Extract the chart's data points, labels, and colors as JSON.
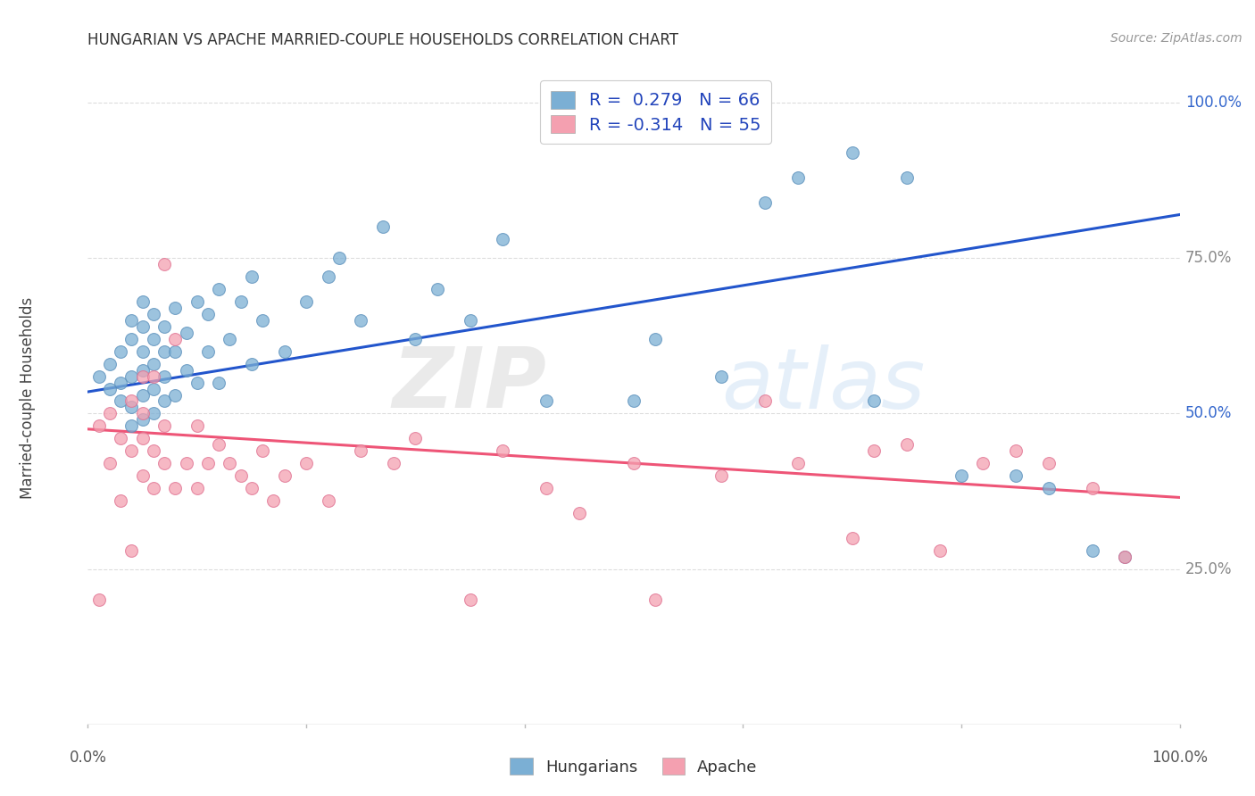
{
  "title": "HUNGARIAN VS APACHE MARRIED-COUPLE HOUSEHOLDS CORRELATION CHART",
  "source": "Source: ZipAtlas.com",
  "ylabel": "Married-couple Households",
  "ytick_vals": [
    0.25,
    0.5,
    0.75,
    1.0
  ],
  "ytick_labels": [
    "25.0%",
    "50.0%",
    "75.0%",
    "100.0%"
  ],
  "xtick_vals": [
    0.0,
    1.0
  ],
  "xtick_labels": [
    "0.0%",
    "100.0%"
  ],
  "blue_color": "#7BAFD4",
  "blue_edge": "#5A8FBB",
  "pink_color": "#F4A0B0",
  "pink_edge": "#E07090",
  "line_blue": "#2255CC",
  "line_pink": "#EE5577",
  "blue_line_x0": 0.0,
  "blue_line_y0": 0.535,
  "blue_line_x1": 1.0,
  "blue_line_y1": 0.82,
  "pink_line_x0": 0.0,
  "pink_line_y0": 0.475,
  "pink_line_x1": 1.0,
  "pink_line_y1": 0.365,
  "hungarian_x": [
    0.01,
    0.02,
    0.02,
    0.03,
    0.03,
    0.03,
    0.04,
    0.04,
    0.04,
    0.04,
    0.04,
    0.05,
    0.05,
    0.05,
    0.05,
    0.05,
    0.05,
    0.06,
    0.06,
    0.06,
    0.06,
    0.06,
    0.07,
    0.07,
    0.07,
    0.07,
    0.08,
    0.08,
    0.08,
    0.09,
    0.09,
    0.1,
    0.1,
    0.11,
    0.11,
    0.12,
    0.12,
    0.13,
    0.14,
    0.15,
    0.15,
    0.16,
    0.18,
    0.2,
    0.22,
    0.23,
    0.25,
    0.27,
    0.3,
    0.32,
    0.35,
    0.38,
    0.42,
    0.5,
    0.52,
    0.58,
    0.62,
    0.65,
    0.7,
    0.72,
    0.75,
    0.8,
    0.85,
    0.88,
    0.92,
    0.95
  ],
  "hungarian_y": [
    0.56,
    0.54,
    0.58,
    0.52,
    0.55,
    0.6,
    0.48,
    0.51,
    0.56,
    0.62,
    0.65,
    0.49,
    0.53,
    0.57,
    0.6,
    0.64,
    0.68,
    0.5,
    0.54,
    0.58,
    0.62,
    0.66,
    0.52,
    0.56,
    0.6,
    0.64,
    0.53,
    0.6,
    0.67,
    0.57,
    0.63,
    0.55,
    0.68,
    0.6,
    0.66,
    0.55,
    0.7,
    0.62,
    0.68,
    0.58,
    0.72,
    0.65,
    0.6,
    0.68,
    0.72,
    0.75,
    0.65,
    0.8,
    0.62,
    0.7,
    0.65,
    0.78,
    0.52,
    0.52,
    0.62,
    0.56,
    0.84,
    0.88,
    0.92,
    0.52,
    0.88,
    0.4,
    0.4,
    0.38,
    0.28,
    0.27
  ],
  "apache_x": [
    0.01,
    0.01,
    0.02,
    0.02,
    0.03,
    0.03,
    0.04,
    0.04,
    0.04,
    0.05,
    0.05,
    0.05,
    0.05,
    0.06,
    0.06,
    0.06,
    0.07,
    0.07,
    0.07,
    0.08,
    0.08,
    0.09,
    0.1,
    0.1,
    0.11,
    0.12,
    0.13,
    0.14,
    0.15,
    0.16,
    0.17,
    0.18,
    0.2,
    0.22,
    0.25,
    0.28,
    0.3,
    0.35,
    0.38,
    0.42,
    0.45,
    0.5,
    0.52,
    0.58,
    0.62,
    0.65,
    0.7,
    0.72,
    0.75,
    0.78,
    0.82,
    0.85,
    0.88,
    0.92,
    0.95
  ],
  "apache_y": [
    0.48,
    0.2,
    0.42,
    0.5,
    0.36,
    0.46,
    0.28,
    0.44,
    0.52,
    0.4,
    0.46,
    0.5,
    0.56,
    0.38,
    0.44,
    0.56,
    0.42,
    0.48,
    0.74,
    0.38,
    0.62,
    0.42,
    0.38,
    0.48,
    0.42,
    0.45,
    0.42,
    0.4,
    0.38,
    0.44,
    0.36,
    0.4,
    0.42,
    0.36,
    0.44,
    0.42,
    0.46,
    0.2,
    0.44,
    0.38,
    0.34,
    0.42,
    0.2,
    0.4,
    0.52,
    0.42,
    0.3,
    0.44,
    0.45,
    0.28,
    0.42,
    0.44,
    0.42,
    0.38,
    0.27
  ],
  "legend1_r": "R =  0.279",
  "legend1_n": "N = 66",
  "legend2_r": "R = -0.314",
  "legend2_n": "N = 55",
  "label_hungarian": "Hungarians",
  "label_apache": "Apache",
  "watermark_zip": "ZIP",
  "watermark_atlas": "atlas",
  "grid_color": "#DDDDDD",
  "bottom_line_color": "#BBBBBB"
}
